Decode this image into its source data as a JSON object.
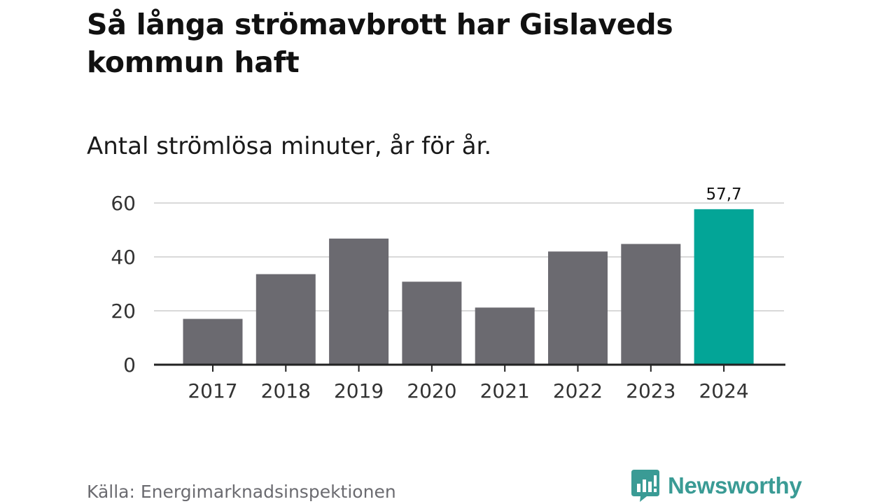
{
  "header": {
    "title": "Så långa strömavbrott har Gislaveds kommun haft",
    "subtitle": "Antal strömlösa minuter, år för år."
  },
  "footer": {
    "source": "Källa: Energimarknadsinspektionen",
    "brand": "Newsworthy"
  },
  "colors": {
    "bar": "#6b6a70",
    "highlight": "#03a597",
    "grid": "#d9d9d9",
    "axis": "#222222",
    "brand": "#3a9b95"
  },
  "chart_data": {
    "type": "bar",
    "title": "Så långa strömavbrott har Gislaveds kommun haft",
    "subtitle": "Antal strömlösa minuter, år för år.",
    "xlabel": "",
    "ylabel": "",
    "categories": [
      "2017",
      "2018",
      "2019",
      "2020",
      "2021",
      "2022",
      "2023",
      "2024"
    ],
    "values": [
      17,
      33.6,
      46.8,
      30.8,
      21.2,
      42,
      44.8,
      57.7
    ],
    "highlight_index": 7,
    "data_labels": [
      "",
      "",
      "",
      "",
      "",
      "",
      "",
      "57,7"
    ],
    "ylim": [
      0,
      60
    ],
    "yticks": [
      0,
      20,
      40,
      60
    ],
    "grid": true,
    "legend": "none"
  }
}
